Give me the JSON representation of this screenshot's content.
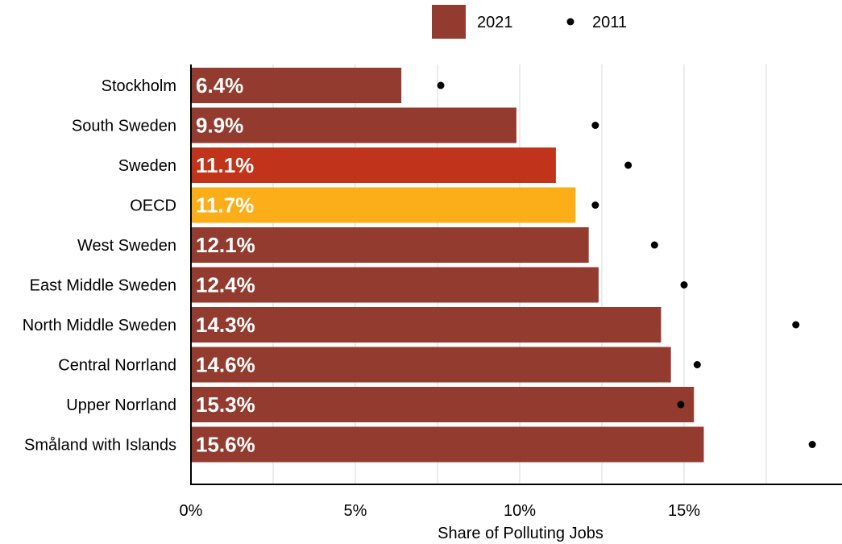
{
  "chart_data": {
    "type": "bar",
    "orientation": "horizontal",
    "xlabel": "Share of Polluting Jobs",
    "xlim": [
      0,
      19.8
    ],
    "xticks": [
      0,
      5,
      10,
      15
    ],
    "xtick_labels": [
      "0%",
      "5%",
      "10%",
      "15%"
    ],
    "grid": true,
    "legend_position": "top",
    "categories": [
      "Stockholm",
      "South Sweden",
      "Sweden",
      "OECD",
      "West Sweden",
      "East Middle Sweden",
      "North Middle Sweden",
      "Central Norrland",
      "Upper Norrland",
      "Småland with Islands"
    ],
    "series": [
      {
        "name": "2021",
        "kind": "bar",
        "values": [
          6.4,
          9.9,
          11.1,
          11.7,
          12.1,
          12.4,
          14.3,
          14.6,
          15.3,
          15.6
        ],
        "labels": [
          "6.4%",
          "9.9%",
          "11.1%",
          "11.7%",
          "12.1%",
          "12.4%",
          "14.3%",
          "14.6%",
          "15.3%",
          "15.6%"
        ]
      },
      {
        "name": "2011",
        "kind": "point",
        "values": [
          7.6,
          12.3,
          13.3,
          12.3,
          14.1,
          15.0,
          18.4,
          15.4,
          14.9,
          18.9
        ]
      }
    ],
    "colors": {
      "default_bar": "#943B2F",
      "Sweden": "#C1331B",
      "OECD": "#FBAE17",
      "point": "#000000"
    }
  }
}
